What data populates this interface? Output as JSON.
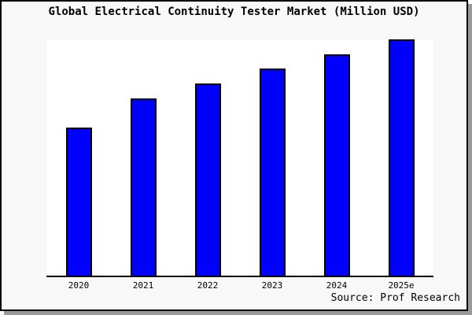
{
  "figure": {
    "title": "Global Electrical Continuity Tester Market (Million USD)",
    "source": "Source: Prof Research"
  },
  "chart_data": {
    "type": "bar",
    "title": "Global Electrical Continuity Tester Market (Million USD)",
    "categories": [
      "2020",
      "2021",
      "2022",
      "2023",
      "2024",
      "2025e"
    ],
    "values": [
      100,
      120,
      130,
      140,
      150,
      160
    ],
    "xlabel": "",
    "ylabel": "",
    "ylim": [
      0,
      160
    ],
    "gridlines": false,
    "y_axis_visible": false,
    "legend": false,
    "annotations": [
      "Source: Prof Research"
    ]
  },
  "colors": {
    "bar_fill": "#0000ff",
    "bar_edge": "#000000",
    "figure_background": "#f8f8f8",
    "plot_background": "#ffffff",
    "border": "#000000",
    "shadow": "#999999",
    "axis": "#000000",
    "text": "#000000"
  }
}
